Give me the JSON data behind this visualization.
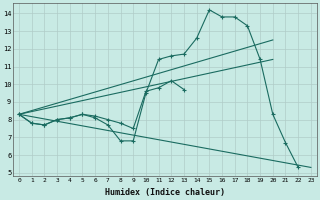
{
  "xlabel": "Humidex (Indice chaleur)",
  "bg_color": "#c8eae4",
  "grid_color": "#b0ccc8",
  "line_color": "#1a6b60",
  "xlim": [
    -0.5,
    23.5
  ],
  "ylim": [
    4.8,
    14.6
  ],
  "yticks": [
    5,
    6,
    7,
    8,
    9,
    10,
    11,
    12,
    13,
    14
  ],
  "xticks": [
    0,
    1,
    2,
    3,
    4,
    5,
    6,
    7,
    8,
    9,
    10,
    11,
    12,
    13,
    14,
    15,
    16,
    17,
    18,
    19,
    20,
    21,
    22,
    23
  ],
  "line1_x": [
    0,
    1,
    2,
    3,
    4,
    5,
    6,
    7,
    8,
    9,
    10,
    11,
    12,
    13,
    14,
    15,
    16,
    17,
    18,
    19,
    20,
    21,
    22
  ],
  "line1_y": [
    8.3,
    7.8,
    7.7,
    8.0,
    8.1,
    8.3,
    8.1,
    7.7,
    6.8,
    6.8,
    9.5,
    11.4,
    11.6,
    11.7,
    12.6,
    14.2,
    13.8,
    13.8,
    13.3,
    11.4,
    8.3,
    6.7,
    5.3
  ],
  "line2_x": [
    0,
    1,
    2,
    3,
    4,
    5,
    6,
    7,
    8,
    9,
    10,
    11,
    12,
    13
  ],
  "line2_y": [
    8.3,
    7.8,
    7.7,
    8.0,
    8.1,
    8.3,
    8.2,
    8.0,
    7.8,
    7.5,
    9.6,
    9.8,
    10.2,
    9.7
  ],
  "line3_x": [
    0,
    20
  ],
  "line3_y": [
    8.3,
    12.5
  ],
  "line4_x": [
    0,
    23
  ],
  "line4_y": [
    8.3,
    5.3
  ],
  "line5_x": [
    0,
    20
  ],
  "line5_y": [
    8.3,
    11.4
  ]
}
